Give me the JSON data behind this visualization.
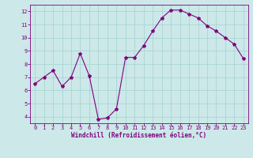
{
  "x": [
    0,
    1,
    2,
    3,
    4,
    5,
    6,
    7,
    8,
    9,
    10,
    11,
    12,
    13,
    14,
    15,
    16,
    17,
    18,
    19,
    20,
    21,
    22,
    23
  ],
  "y": [
    6.5,
    7.0,
    7.5,
    6.3,
    7.0,
    8.8,
    7.1,
    3.8,
    3.9,
    4.6,
    8.5,
    8.5,
    9.4,
    10.5,
    11.5,
    12.1,
    12.1,
    11.8,
    11.5,
    10.9,
    10.5,
    10.0,
    9.5,
    8.4
  ],
  "line_color": "#800080",
  "marker": "*",
  "marker_size": 3,
  "bg_color": "#cce8e8",
  "grid_color": "#aad4d4",
  "xlabel": "Windchill (Refroidissement éolien,°C)",
  "xlim": [
    -0.5,
    23.5
  ],
  "ylim": [
    3.5,
    12.5
  ],
  "yticks": [
    4,
    5,
    6,
    7,
    8,
    9,
    10,
    11,
    12
  ],
  "xticks": [
    0,
    1,
    2,
    3,
    4,
    5,
    6,
    7,
    8,
    9,
    10,
    11,
    12,
    13,
    14,
    15,
    16,
    17,
    18,
    19,
    20,
    21,
    22,
    23
  ],
  "tick_color": "#800080",
  "label_color": "#800080",
  "axis_color": "#800080",
  "label_fontsize": 5.5,
  "tick_fontsize": 5
}
